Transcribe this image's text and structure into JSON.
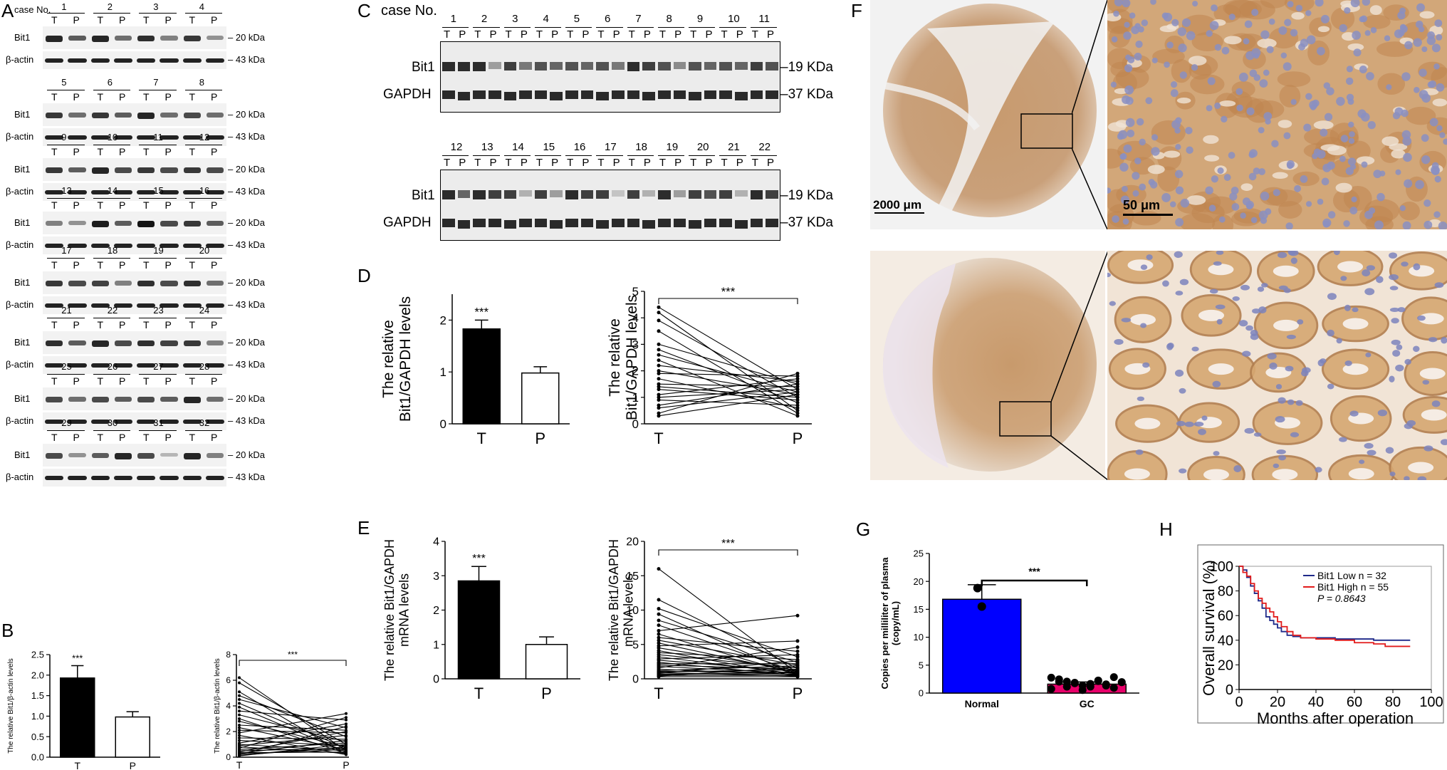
{
  "panels": {
    "A": "A",
    "B": "B",
    "C": "C",
    "D": "D",
    "E": "E",
    "F": "F",
    "G": "G",
    "H": "H"
  },
  "panelA": {
    "case_no_label": "case No.",
    "band_labels": {
      "bit1": "Bit1",
      "actin": "β-actin"
    },
    "kda": {
      "bit1": "20 kDa",
      "actin": "43 kDa"
    },
    "lane_labels": [
      "T",
      "P"
    ],
    "groups": [
      [
        "1",
        "2",
        "3",
        "4"
      ],
      [
        "5",
        "6",
        "7",
        "8"
      ],
      [
        "9",
        "10",
        "11",
        "12"
      ],
      [
        "13",
        "14",
        "15",
        "16"
      ],
      [
        "17",
        "18",
        "19",
        "20"
      ],
      [
        "21",
        "22",
        "23",
        "24"
      ],
      [
        "25",
        "26",
        "27",
        "28"
      ],
      [
        "29",
        "30",
        "31",
        "32"
      ]
    ]
  },
  "panelC": {
    "case_no_label": "case No.",
    "band_labels": {
      "bit1": "Bit1",
      "gapdh": "GAPDH"
    },
    "kda": {
      "bit1": "19 KDa",
      "gapdh": "37 KDa"
    },
    "lane_labels": [
      "T",
      "P"
    ],
    "groups": [
      [
        "1",
        "2",
        "3",
        "4",
        "5",
        "6",
        "7",
        "8",
        "9",
        "10",
        "11"
      ],
      [
        "12",
        "13",
        "14",
        "15",
        "16",
        "17",
        "18",
        "19",
        "20",
        "21",
        "22"
      ]
    ]
  },
  "panelF": {
    "scale_low": "2000 μm",
    "scale_high": "50 μm",
    "colors": {
      "stain_brown": "#b9865a",
      "stain_blue": "#8a8fc2",
      "background": "#f4ece3"
    }
  },
  "colors": {
    "black_bar": "#000000",
    "blue_bar": "#0000ff",
    "pink_dots": "#e8006a",
    "km_blue": "#1f2a8a",
    "km_red": "#e21b1b"
  },
  "chart_data": [
    {
      "id": "B-bar",
      "type": "bar",
      "categories": [
        "T",
        "P"
      ],
      "values": [
        1.93,
        0.98
      ],
      "errors": [
        0.3,
        0.13
      ],
      "ylabel": "The relative Bit1/β-actin levels",
      "ylim": [
        0,
        2.5
      ],
      "yticks": [
        "0.0",
        "0.5",
        "1.0",
        "1.5",
        "2.0",
        "2.5"
      ],
      "annotation": "***"
    },
    {
      "id": "B-paired",
      "type": "line",
      "categories": [
        "T",
        "P"
      ],
      "ylabel": "The relative Bit1/β-actin levels",
      "ylim": [
        0,
        8
      ],
      "yticks": [
        "0",
        "2",
        "4",
        "6",
        "8"
      ],
      "annotation": "***",
      "pairs": [
        [
          6.2,
          0.5
        ],
        [
          5.8,
          1.0
        ],
        [
          5.1,
          0.2
        ],
        [
          4.8,
          1.6
        ],
        [
          4.5,
          2.3
        ],
        [
          4.2,
          0.7
        ],
        [
          3.9,
          0.4
        ],
        [
          3.6,
          2.9
        ],
        [
          3.3,
          1.2
        ],
        [
          3.0,
          0.3
        ],
        [
          2.8,
          0.8
        ],
        [
          2.5,
          2.1
        ],
        [
          2.3,
          0.6
        ],
        [
          2.1,
          1.9
        ],
        [
          1.9,
          3.4
        ],
        [
          1.7,
          0.2
        ],
        [
          1.5,
          1.4
        ],
        [
          1.3,
          0.9
        ],
        [
          1.1,
          2.6
        ],
        [
          1.0,
          0.5
        ],
        [
          0.9,
          1.7
        ],
        [
          0.8,
          0.3
        ],
        [
          0.7,
          3.1
        ],
        [
          0.6,
          1.1
        ],
        [
          0.5,
          0.7
        ],
        [
          0.4,
          2.0
        ],
        [
          0.35,
          0.4
        ],
        [
          0.3,
          1.3
        ],
        [
          0.25,
          0.6
        ],
        [
          0.2,
          2.4
        ],
        [
          0.15,
          0.8
        ],
        [
          0.1,
          1.0
        ]
      ]
    },
    {
      "id": "D-bar",
      "type": "bar",
      "categories": [
        "T",
        "P"
      ],
      "values": [
        1.83,
        0.98
      ],
      "errors": [
        0.17,
        0.12
      ],
      "ylabel": "The relative Bit1/GAPDH levels",
      "ylim": [
        0,
        2.5
      ],
      "yticks": [
        "0",
        "1",
        "2"
      ],
      "annotation": "***"
    },
    {
      "id": "D-paired",
      "type": "line",
      "categories": [
        "T",
        "P"
      ],
      "ylabel": "The relative Bit1/GAPDH levels",
      "ylim": [
        0,
        5
      ],
      "yticks": [
        "0",
        "1",
        "2",
        "3",
        "4",
        "5"
      ],
      "annotation": "***",
      "pairs": [
        [
          4.4,
          1.3
        ],
        [
          4.2,
          0.5
        ],
        [
          3.9,
          1.0
        ],
        [
          3.5,
          0.4
        ],
        [
          3.0,
          1.5
        ],
        [
          2.8,
          0.8
        ],
        [
          2.6,
          1.2
        ],
        [
          2.4,
          0.3
        ],
        [
          2.2,
          1.6
        ],
        [
          2.0,
          1.1
        ],
        [
          1.9,
          1.8
        ],
        [
          1.7,
          0.6
        ],
        [
          1.5,
          1.4
        ],
        [
          1.4,
          1.0
        ],
        [
          1.3,
          0.9
        ],
        [
          1.1,
          1.7
        ],
        [
          1.0,
          1.3
        ],
        [
          0.9,
          0.7
        ],
        [
          0.7,
          1.5
        ],
        [
          0.6,
          1.2
        ],
        [
          0.4,
          1.9
        ],
        [
          0.3,
          1.1
        ]
      ]
    },
    {
      "id": "E-bar",
      "type": "bar",
      "categories": [
        "T",
        "P"
      ],
      "values": [
        2.85,
        1.0
      ],
      "errors": [
        0.42,
        0.22
      ],
      "ylabel": "The relative Bit1/GAPDH mRNA levels",
      "ylim": [
        0,
        4
      ],
      "yticks": [
        "0",
        "1",
        "2",
        "3",
        "4"
      ],
      "annotation": "***"
    },
    {
      "id": "E-paired",
      "type": "line",
      "categories": [
        "T",
        "P"
      ],
      "ylabel": "The relative Bit1/GAPDH mRNA levels",
      "ylim": [
        0,
        20
      ],
      "yticks": [
        "0",
        "5",
        "10",
        "15",
        "20"
      ],
      "annotation": "***",
      "pairs": [
        [
          16,
          0.8
        ],
        [
          11.5,
          1.5
        ],
        [
          10.2,
          3.2
        ],
        [
          9.4,
          0.5
        ],
        [
          8.5,
          2.4
        ],
        [
          7.8,
          1.0
        ],
        [
          7.0,
          9.2
        ],
        [
          6.5,
          0.6
        ],
        [
          6.0,
          4.0
        ],
        [
          5.6,
          2.0
        ],
        [
          5.2,
          0.9
        ],
        [
          4.8,
          5.5
        ],
        [
          4.5,
          1.2
        ],
        [
          4.1,
          0.4
        ],
        [
          3.8,
          2.8
        ],
        [
          3.5,
          1.6
        ],
        [
          3.2,
          0.7
        ],
        [
          2.9,
          3.5
        ],
        [
          2.7,
          1.1
        ],
        [
          2.4,
          0.5
        ],
        [
          2.2,
          2.2
        ],
        [
          2.0,
          1.4
        ],
        [
          1.8,
          0.8
        ],
        [
          1.6,
          4.6
        ],
        [
          1.4,
          0.6
        ],
        [
          1.2,
          1.9
        ],
        [
          1.1,
          0.9
        ],
        [
          1.0,
          1.3
        ],
        [
          0.9,
          0.4
        ],
        [
          0.8,
          2.6
        ],
        [
          0.7,
          0.7
        ],
        [
          0.6,
          1.0
        ],
        [
          0.5,
          0.5
        ],
        [
          0.4,
          1.7
        ],
        [
          0.3,
          0.3
        ]
      ]
    },
    {
      "id": "G-bar",
      "type": "bar",
      "categories": [
        "Normal",
        "GC"
      ],
      "values": [
        16.8,
        1.6
      ],
      "errors": [
        2.6,
        0.4
      ],
      "ylabel": "Copies per milliliter of plasma (copy/mL)",
      "ylim": [
        0,
        25
      ],
      "yticks": [
        "0",
        "5",
        "10",
        "15",
        "20",
        "25"
      ],
      "annotation": "***",
      "normal_points": [
        18.8,
        15.5
      ],
      "gc_points": [
        2.5,
        2.2,
        1.8,
        1.5,
        1.1,
        0.9,
        2.0,
        1.3,
        2.6,
        1.7,
        1.0,
        2.3,
        1.4,
        2.1,
        0.8,
        1.9,
        2.4,
        1.6,
        1.2,
        2.2
      ]
    },
    {
      "id": "H-km",
      "type": "line",
      "ylabel": "Overall survival (%)",
      "xlabel": "Months after operation",
      "xlim": [
        0,
        100
      ],
      "ylim": [
        0,
        100
      ],
      "xticks": [
        "0",
        "20",
        "40",
        "60",
        "80",
        "100"
      ],
      "yticks": [
        "0",
        "20",
        "40",
        "60",
        "80",
        "100"
      ],
      "legend": [
        "Bit1 Low n = 32",
        "Bit1 High n = 55"
      ],
      "pvalue": "P = 0.8643",
      "series": [
        {
          "name": "Bit1 Low n = 32",
          "points": [
            [
              0,
              100
            ],
            [
              2,
              97
            ],
            [
              4,
              91
            ],
            [
              6,
              84
            ],
            [
              8,
              78
            ],
            [
              10,
              72
            ],
            [
              12,
              66
            ],
            [
              14,
              59
            ],
            [
              16,
              56
            ],
            [
              18,
              53
            ],
            [
              20,
              50
            ],
            [
              22,
              47
            ],
            [
              25,
              44
            ],
            [
              28,
              43
            ],
            [
              32,
              42
            ],
            [
              40,
              42
            ],
            [
              50,
              41
            ],
            [
              60,
              41
            ],
            [
              70,
              40
            ],
            [
              80,
              40
            ],
            [
              86,
              40
            ],
            [
              89,
              40
            ]
          ]
        },
        {
          "name": "Bit1 High n = 55",
          "points": [
            [
              0,
              100
            ],
            [
              2,
              95
            ],
            [
              4,
              92
            ],
            [
              6,
              86
            ],
            [
              8,
              80
            ],
            [
              10,
              74
            ],
            [
              12,
              70
            ],
            [
              14,
              66
            ],
            [
              16,
              63
            ],
            [
              18,
              59
            ],
            [
              20,
              55
            ],
            [
              22,
              51
            ],
            [
              25,
              47
            ],
            [
              28,
              44
            ],
            [
              32,
              42
            ],
            [
              40,
              41
            ],
            [
              50,
              40
            ],
            [
              60,
              38
            ],
            [
              70,
              37
            ],
            [
              76,
              35
            ],
            [
              80,
              35
            ],
            [
              86,
              35
            ],
            [
              89,
              35
            ]
          ]
        }
      ]
    }
  ]
}
